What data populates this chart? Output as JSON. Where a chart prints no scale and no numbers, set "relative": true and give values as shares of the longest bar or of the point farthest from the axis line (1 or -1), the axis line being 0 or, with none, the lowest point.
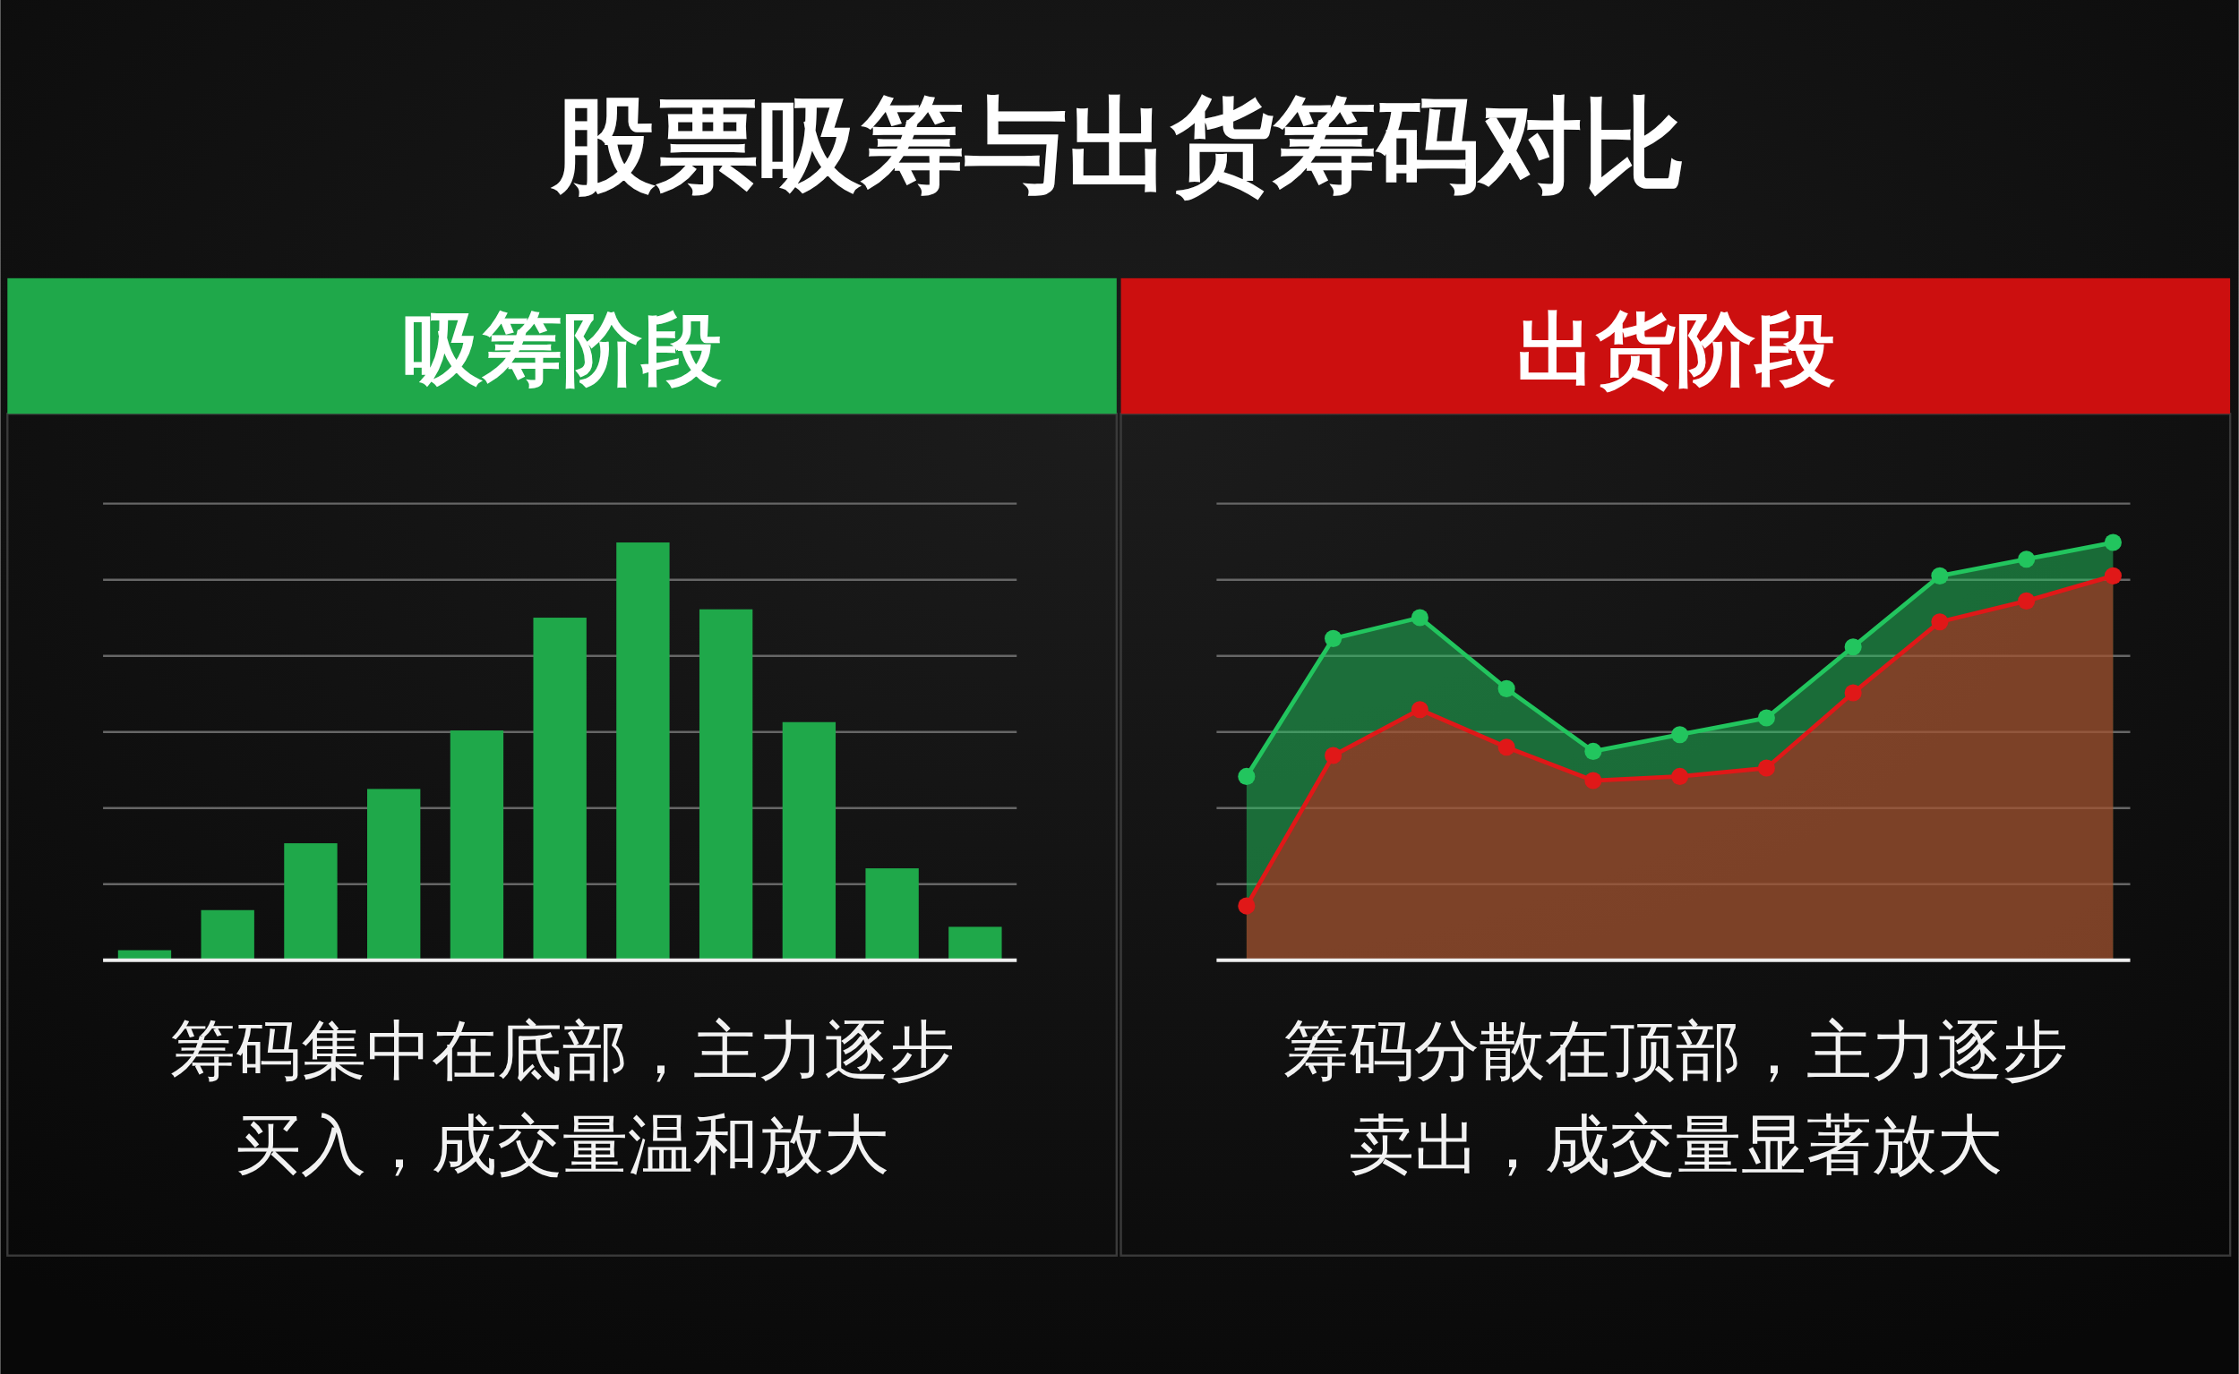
{
  "chart_data": [
    {
      "type": "bar",
      "title": "股票吸筹与出货筹码对比",
      "subtitle": "吸筹阶段",
      "categories": [
        null,
        null,
        null,
        null,
        null,
        null,
        null,
        null,
        null,
        null,
        null
      ],
      "relative": true,
      "color": "#1fa84a",
      "values": [
        0.024,
        0.12,
        0.28,
        0.41,
        0.55,
        0.82,
        1,
        0.84,
        0.57,
        0.22,
        0.08
      ],
      "grid": true,
      "annotations": [
        "筹码集中在底部，主力逐步买入，成交量温和放大"
      ]
    },
    {
      "type": "area",
      "subtitle": "出货阶段",
      "categories": [
        null,
        null,
        null,
        null,
        null,
        null,
        null,
        null,
        null,
        null,
        null
      ],
      "relative": true,
      "grid": true,
      "marker": "circle",
      "series": [
        {
          "color": "#22c55e",
          "values": [
            0.44,
            0.77,
            0.82,
            0.65,
            0.5,
            0.54,
            0.58,
            0.75,
            0.92,
            0.96,
            1
          ]
        },
        {
          "color": "#e01818",
          "values": [
            0.13,
            0.49,
            0.6,
            0.51,
            0.43,
            0.44,
            0.46,
            0.64,
            0.81,
            0.86,
            0.92
          ]
        }
      ],
      "annotations": [
        "筹码分散在顶部，主力逐步卖出，成交量显著放大"
      ]
    }
  ]
}
